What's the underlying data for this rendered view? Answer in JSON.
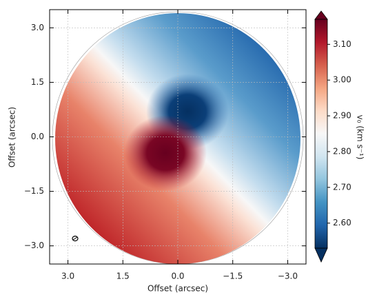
{
  "chart_data": {
    "type": "image",
    "xlabel": "Offset (arcsec)",
    "ylabel": "Offset (arcsec)",
    "xlim": [
      3.5,
      -3.5
    ],
    "ylim": [
      -3.5,
      3.5
    ],
    "xticks": [
      {
        "value": 3,
        "label": "3.0"
      },
      {
        "value": 1.5,
        "label": "1.5"
      },
      {
        "value": 0,
        "label": "0.0"
      },
      {
        "value": -1.5,
        "label": "−1.5"
      },
      {
        "value": -3,
        "label": "−3.0"
      }
    ],
    "yticks": [
      {
        "value": 3,
        "label": "3.0"
      },
      {
        "value": 1.5,
        "label": "1.5"
      },
      {
        "value": 0,
        "label": "0.0"
      },
      {
        "value": -1.5,
        "label": "−1.5"
      },
      {
        "value": -3,
        "label": "−3.0"
      }
    ],
    "grid": true,
    "colorbar": {
      "label": "v₀   (km s⁻¹)",
      "clim": [
        2.53,
        3.17
      ],
      "ticks": [
        {
          "value": 2.6,
          "label": "2.60"
        },
        {
          "value": 2.7,
          "label": "2.70"
        },
        {
          "value": 2.8,
          "label": "2.80"
        },
        {
          "value": 2.9,
          "label": "2.90"
        },
        {
          "value": 3.0,
          "label": "3.00"
        },
        {
          "value": 3.1,
          "label": "3.10"
        }
      ],
      "colormap": [
        "#053061",
        "#2166ac",
        "#4393c3",
        "#92c5de",
        "#d1e5f0",
        "#f7f7f7",
        "#fddbc7",
        "#f4a582",
        "#d6604d",
        "#b2182b",
        "#67001f"
      ]
    }
  }
}
